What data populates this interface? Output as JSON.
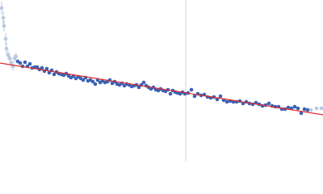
{
  "chart_data": {
    "type": "scatter",
    "xlim": [
      0,
      400
    ],
    "ylim": [
      0,
      200
    ],
    "series": [
      {
        "color": "#3d62b3",
        "x": [
          22,
          25,
          28,
          31,
          34,
          37,
          40,
          43,
          46,
          49,
          52,
          55,
          58,
          61,
          64,
          67,
          70,
          73,
          76,
          79,
          82,
          85,
          88,
          91,
          94,
          97,
          100,
          103,
          106,
          109,
          112,
          115,
          118,
          121,
          124,
          127,
          130,
          133,
          136,
          139,
          142,
          145,
          148,
          151,
          154,
          157,
          160,
          163,
          166,
          169,
          172,
          175,
          178,
          181,
          184,
          187,
          190,
          193,
          196,
          199,
          202,
          205,
          208,
          211,
          214,
          217,
          220,
          223,
          226,
          229,
          233,
          237,
          241,
          245,
          249,
          253,
          257,
          261,
          265,
          269,
          273,
          277,
          281,
          285,
          289,
          293,
          297,
          301,
          305,
          309,
          313,
          317,
          321,
          325,
          329,
          333,
          337,
          341,
          345,
          349,
          353,
          357,
          361,
          365,
          369,
          373,
          377,
          381
        ],
        "y": [
          124,
          122,
          118,
          123,
          118,
          121,
          116,
          117,
          117,
          114,
          116,
          112,
          115,
          110,
          113,
          108,
          111,
          109,
          108,
          107,
          109,
          106,
          104,
          106,
          103,
          105,
          103,
          101,
          104,
          100,
          101,
          99,
          96,
          101,
          98,
          100,
          98,
          99,
          101,
          97,
          99,
          96,
          95,
          97,
          94,
          96,
          95,
          93,
          94,
          95,
          92,
          95,
          98,
          94,
          92,
          90,
          92,
          89,
          88,
          90,
          88,
          87,
          89,
          84,
          88,
          86,
          85,
          84,
          86,
          84,
          85,
          89,
          81,
          84,
          82,
          83,
          80,
          79,
          80,
          77,
          81,
          76,
          74,
          75,
          74,
          74,
          75,
          72,
          74,
          72,
          71,
          73,
          71,
          69,
          70,
          72,
          69,
          68,
          68,
          65,
          65,
          67,
          66,
          68,
          66,
          60,
          65,
          64
        ]
      },
      {
        "color": "#b9c9e3",
        "x": [
          2,
          4,
          5,
          7,
          8,
          10,
          12,
          14,
          16,
          18,
          20,
          385,
          392,
          398
        ],
        "y": [
          190,
          178,
          168,
          152,
          140,
          132,
          128,
          122,
          118,
          128,
          130,
          64,
          66,
          66
        ],
        "errors": [
          8,
          8,
          7,
          7,
          7,
          6,
          6,
          6,
          6,
          5,
          5,
          null,
          null,
          null
        ]
      }
    ],
    "fit": {
      "color": "#e02b2b",
      "x": [
        0,
        400
      ],
      "y": [
        122,
        58
      ]
    },
    "vline": {
      "color": "#c9d5e8",
      "x": 230
    }
  }
}
